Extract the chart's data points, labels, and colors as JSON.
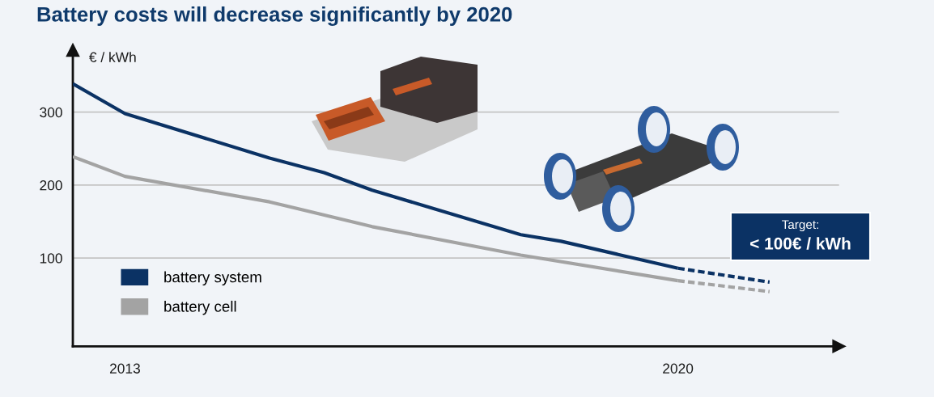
{
  "chart_data": {
    "type": "line",
    "title": "Battery costs will decrease significantly by 2020",
    "ylabel": "€ / kWh",
    "xlim": [
      2012.34,
      2022.04
    ],
    "xticks": [
      2013,
      2020
    ],
    "ylim": [
      -21,
      385
    ],
    "yticks": [
      100,
      200,
      300
    ],
    "grid": "y",
    "legend": "bottom left",
    "series": [
      {
        "name": "battery system",
        "color": "#0b3264",
        "x": [
          2012.34,
          2013.0,
          2014.83,
          2015.52,
          2016.13,
          2018.01,
          2018.52,
          2020.0
        ],
        "values": [
          339,
          298,
          237,
          217,
          193,
          132,
          123,
          86
        ]
      },
      {
        "color": "#0b3264",
        "line_style": "dashed",
        "x": [
          2020.0,
          2021.16
        ],
        "values": [
          86,
          67
        ]
      },
      {
        "name": "battery cell",
        "color": "#a3a3a3",
        "x": [
          2012.34,
          2013.0,
          2014.83,
          2016.13,
          2018.01,
          2020.0
        ],
        "values": [
          239,
          212,
          177,
          143,
          104,
          69
        ]
      },
      {
        "color": "#a3a3a3",
        "line_style": "dashed",
        "x": [
          2020.0,
          2021.16
        ],
        "values": [
          69,
          54
        ]
      }
    ],
    "annotations": [
      "Target:",
      "< 100€ / kWh"
    ]
  }
}
